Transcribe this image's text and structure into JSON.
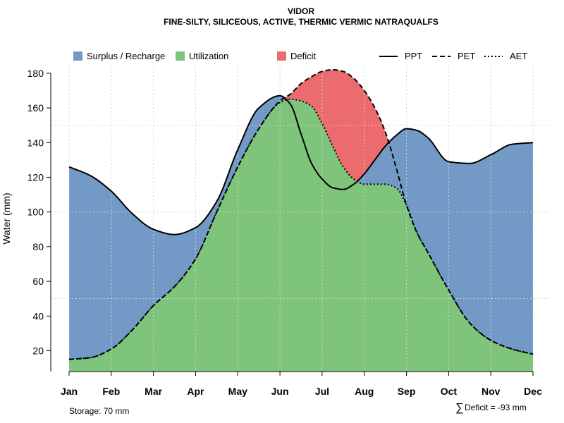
{
  "chart_data": {
    "type": "area",
    "title": "VIDOR",
    "subtitle": "FINE-SILTY, SILICEOUS, ACTIVE, THERMIC VERMIC NATRAQUALFS",
    "ylabel": "Water (mm)",
    "xlabel": "",
    "ylim": [
      8,
      184
    ],
    "yticks": [
      20,
      40,
      60,
      80,
      100,
      120,
      140,
      160,
      180
    ],
    "categories": [
      "Jan",
      "Feb",
      "Mar",
      "Apr",
      "May",
      "Jun",
      "Jul",
      "Aug",
      "Sep",
      "Oct",
      "Nov",
      "Dec"
    ],
    "x": [
      0,
      0.5,
      1,
      1.5,
      2,
      2.5,
      3,
      3.5,
      4,
      4.5,
      5,
      5.25,
      5.5,
      5.75,
      6,
      6.25,
      6.5,
      6.75,
      7,
      7.25,
      7.5,
      7.75,
      8,
      8.25,
      8.5,
      9,
      9.5,
      10,
      10.5,
      11
    ],
    "series": [
      {
        "name": "PPT",
        "style": "solid",
        "values": [
          126,
          121,
          112,
          99,
          90,
          87,
          91,
          106,
          136,
          160,
          167,
          162,
          145,
          128,
          119,
          114,
          113,
          116,
          122,
          130,
          138,
          144,
          148,
          147,
          143,
          129,
          128,
          133,
          139,
          140
        ]
      },
      {
        "name": "PET",
        "style": "dashed",
        "values": [
          15,
          16,
          21,
          32,
          46,
          57,
          73,
          100,
          126,
          148,
          164,
          168,
          174,
          178,
          181,
          182,
          181,
          177,
          170,
          160,
          146,
          126,
          104,
          88,
          77,
          55,
          36,
          26,
          21,
          18
        ]
      },
      {
        "name": "AET",
        "style": "dotted",
        "values": [
          15,
          16,
          21,
          32,
          46,
          57,
          73,
          100,
          126,
          148,
          163,
          165,
          164,
          161,
          151,
          138,
          126,
          119,
          116,
          116,
          116,
          114,
          104,
          88,
          77,
          55,
          36,
          26,
          21,
          18
        ]
      }
    ],
    "legend": [
      {
        "label": "Surplus / Recharge",
        "kind": "fill",
        "color": "#7399c6"
      },
      {
        "label": "Utilization",
        "kind": "fill",
        "color": "#7fc47b"
      },
      {
        "label": "Deficit",
        "kind": "fill",
        "color": "#ec6b6e"
      },
      {
        "label": "PPT",
        "kind": "line",
        "style": "solid"
      },
      {
        "label": "PET",
        "kind": "line",
        "style": "dashed"
      },
      {
        "label": "AET",
        "kind": "line",
        "style": "dotted"
      }
    ],
    "legend_position": "top",
    "grid": true,
    "colors": {
      "surplus": "#7399c6",
      "utilization": "#7fc47b",
      "deficit": "#ec6b6e"
    },
    "annotations": {
      "storage": "Storage: 70 mm",
      "deficit_symbol": "∑",
      "deficit": "Deficit = -93 mm"
    }
  }
}
